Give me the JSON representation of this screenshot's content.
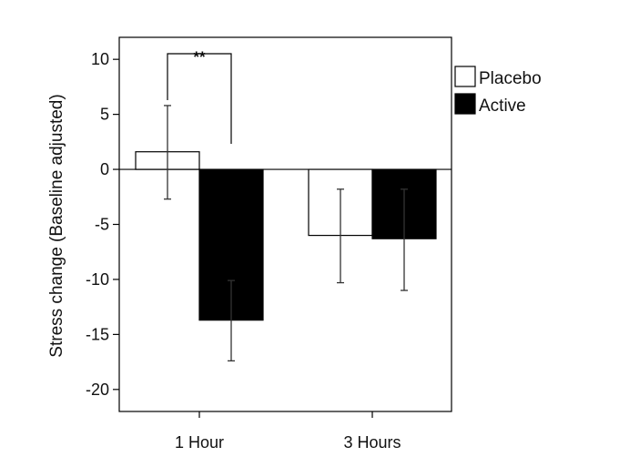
{
  "chart_data": {
    "type": "bar",
    "title": "",
    "xlabel": "",
    "ylabel": "Stress change (Baseline adjusted)",
    "ylim": [
      -22,
      12
    ],
    "yticks": [
      10,
      5,
      0,
      -5,
      -10,
      -15,
      -20
    ],
    "categories": [
      "1 Hour",
      "3 Hours"
    ],
    "series": [
      {
        "name": "Placebo",
        "color": "#ffffff",
        "values": [
          1.6,
          -6.0
        ],
        "error_low": [
          -2.7,
          -10.3
        ],
        "error_high": [
          5.8,
          -1.8
        ]
      },
      {
        "name": "Active",
        "color": "#000000",
        "values": [
          -13.7,
          -6.3
        ],
        "error_low": [
          -17.4,
          -11.0
        ],
        "error_high": [
          -10.1,
          -1.8
        ]
      }
    ],
    "annotations": [
      {
        "text": "**",
        "between": [
          "1 Hour Placebo",
          "1 Hour Active"
        ]
      }
    ],
    "legend_position": "top-right",
    "grid": false
  }
}
